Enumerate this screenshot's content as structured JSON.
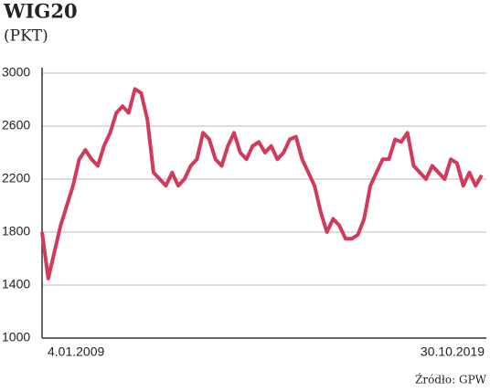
{
  "chart_data": {
    "type": "line",
    "title": "WIG20",
    "subtitle": "(PKT)",
    "source": "Źródło: GPW",
    "categories": [
      "4.01.2009",
      null,
      null,
      null,
      null,
      null,
      null,
      null,
      null,
      null,
      null,
      null,
      null,
      null,
      null,
      null,
      null,
      null,
      null,
      null,
      null,
      null,
      null,
      null,
      null,
      null,
      null,
      null,
      null,
      null,
      null,
      null,
      null,
      null,
      null,
      null,
      null,
      null,
      null,
      null,
      null,
      null,
      null,
      null,
      null,
      null,
      null,
      null,
      null,
      null,
      null,
      null,
      null,
      null,
      null,
      null,
      null,
      null,
      null,
      null,
      null,
      null,
      null,
      null,
      null,
      null,
      null,
      null,
      null,
      null,
      null,
      "30.10.2019"
    ],
    "values": [
      1800,
      1450,
      1650,
      1850,
      2000,
      2150,
      2350,
      2420,
      2350,
      2300,
      2450,
      2550,
      2700,
      2750,
      2700,
      2880,
      2850,
      2650,
      2250,
      2200,
      2150,
      2250,
      2150,
      2200,
      2300,
      2350,
      2550,
      2500,
      2350,
      2300,
      2450,
      2550,
      2400,
      2350,
      2450,
      2480,
      2400,
      2450,
      2350,
      2400,
      2500,
      2520,
      2350,
      2250,
      2150,
      1950,
      1800,
      1900,
      1850,
      1750,
      1750,
      1780,
      1900,
      2150,
      2250,
      2350,
      2350,
      2500,
      2480,
      2550,
      2300,
      2250,
      2200,
      2300,
      2250,
      2200,
      2350,
      2320,
      2150,
      2250,
      2150,
      2230
    ],
    "color": "#d23a5b",
    "ylim": [
      1000,
      3000
    ],
    "yticks": [
      1000,
      1400,
      1800,
      2200,
      2600,
      3000
    ],
    "grid": true
  }
}
